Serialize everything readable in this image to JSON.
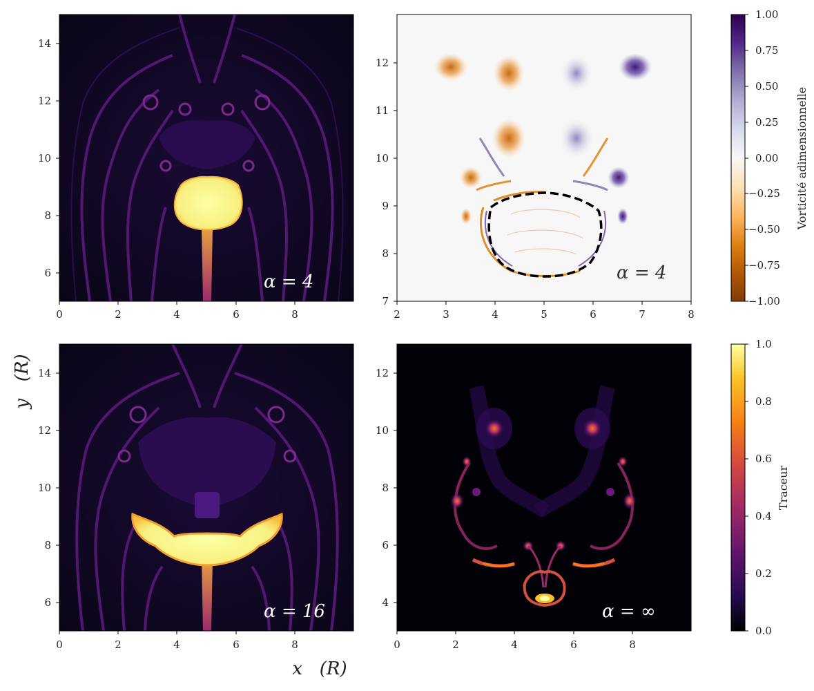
{
  "figure": {
    "xlabel": "x   (R)",
    "ylabel": "y   (R)"
  },
  "chart_data": [
    {
      "type": "heatmap",
      "panel": "top-left",
      "quantity": "tracer",
      "annotation": "α = 4",
      "xlim": [
        0,
        10
      ],
      "ylim": [
        5,
        15
      ],
      "xticks": [
        "0",
        "2",
        "4",
        "6",
        "8"
      ],
      "yticks": [
        "6",
        "8",
        "10",
        "12",
        "14"
      ]
    },
    {
      "type": "heatmap",
      "panel": "top-right",
      "quantity": "vorticity",
      "annotation": "α = 4",
      "xlim": [
        2,
        8
      ],
      "ylim": [
        7,
        13
      ],
      "xticks": [
        "2",
        "3",
        "4",
        "5",
        "6",
        "7",
        "8"
      ],
      "yticks": [
        "7",
        "8",
        "9",
        "10",
        "11",
        "12"
      ],
      "contour": "dashed"
    },
    {
      "type": "heatmap",
      "panel": "bottom-left",
      "quantity": "tracer",
      "annotation": "α = 16",
      "xlim": [
        0,
        10
      ],
      "ylim": [
        5,
        15
      ],
      "xticks": [
        "0",
        "2",
        "4",
        "6",
        "8"
      ],
      "yticks": [
        "6",
        "8",
        "10",
        "12",
        "14"
      ]
    },
    {
      "type": "heatmap",
      "panel": "bottom-right",
      "quantity": "tracer",
      "annotation": "α = ∞",
      "xlim": [
        0,
        10
      ],
      "ylim": [
        3,
        13
      ],
      "xticks": [
        "0",
        "2",
        "4",
        "6",
        "8"
      ],
      "yticks": [
        "4",
        "6",
        "8",
        "10",
        "12"
      ]
    }
  ],
  "colorbars": {
    "vorticity": {
      "label": "Vorticité adimensionnelle",
      "range": [
        -1.0,
        1.0
      ],
      "ticks": [
        "1.00",
        "0.75",
        "0.50",
        "0.25",
        "0.00",
        "−0.25",
        "−0.50",
        "−0.75",
        "−1.00"
      ],
      "colors": [
        "#2d004b",
        "#542788",
        "#8073ac",
        "#b2abd2",
        "#d8daeb",
        "#f7f7f7",
        "#fee0b6",
        "#fdb863",
        "#e08214",
        "#b35806",
        "#7f3b08"
      ]
    },
    "tracer": {
      "label": "Traceur",
      "range": [
        0.0,
        1.0
      ],
      "ticks": [
        "1.0",
        "0.8",
        "0.6",
        "0.4",
        "0.2",
        "0.0"
      ],
      "colors": [
        "#fcffa4",
        "#fac228",
        "#f57d15",
        "#d44842",
        "#9f2a63",
        "#65156e",
        "#280b53",
        "#000004"
      ]
    }
  }
}
